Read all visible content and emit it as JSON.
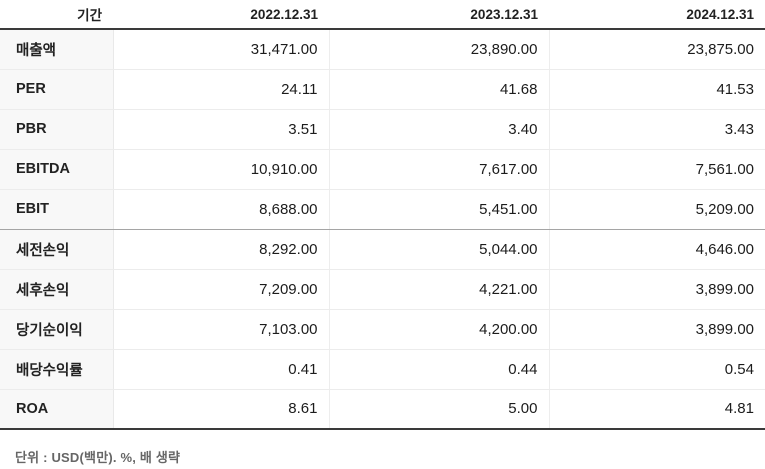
{
  "colors": {
    "heavy_border": "#3a3a3a",
    "light_border": "#ececec",
    "section_border": "#a5a5a5",
    "label_bg": "#f8f8f8",
    "text": "#222222",
    "footnote_text": "#666666"
  },
  "table": {
    "header": {
      "period_label": "기간",
      "columns": [
        "2022.12.31",
        "2023.12.31",
        "2024.12.31"
      ]
    },
    "rows": [
      {
        "label": "매출액",
        "values": [
          "31,471.00",
          "23,890.00",
          "23,875.00"
        ]
      },
      {
        "label": "PER",
        "values": [
          "24.11",
          "41.68",
          "41.53"
        ]
      },
      {
        "label": "PBR",
        "values": [
          "3.51",
          "3.40",
          "3.43"
        ]
      },
      {
        "label": "EBITDA",
        "values": [
          "10,910.00",
          "7,617.00",
          "7,561.00"
        ]
      },
      {
        "label": "EBIT",
        "values": [
          "8,688.00",
          "5,451.00",
          "5,209.00"
        ]
      },
      {
        "label": "세전손익",
        "values": [
          "8,292.00",
          "5,044.00",
          "4,646.00"
        ]
      },
      {
        "label": "세후손익",
        "values": [
          "7,209.00",
          "4,221.00",
          "3,899.00"
        ]
      },
      {
        "label": "당기순이익",
        "values": [
          "7,103.00",
          "4,200.00",
          "3,899.00"
        ]
      },
      {
        "label": "배당수익률",
        "values": [
          "0.41",
          "0.44",
          "0.54"
        ]
      },
      {
        "label": "ROA",
        "values": [
          "8.61",
          "5.00",
          "4.81"
        ]
      }
    ],
    "section_end_row_index": 4,
    "footnote": "단위 : USD(백만). %, 배 생략"
  },
  "chart_data": {
    "type": "table",
    "title": "",
    "columns": [
      "기간",
      "2022.12.31",
      "2023.12.31",
      "2024.12.31"
    ],
    "rows": [
      [
        "매출액",
        31471.0,
        23890.0,
        23875.0
      ],
      [
        "PER",
        24.11,
        41.68,
        41.53
      ],
      [
        "PBR",
        3.51,
        3.4,
        3.43
      ],
      [
        "EBITDA",
        10910.0,
        7617.0,
        7561.0
      ],
      [
        "EBIT",
        8688.0,
        5451.0,
        5209.0
      ],
      [
        "세전손익",
        8292.0,
        5044.0,
        4646.0
      ],
      [
        "세후손익",
        7209.0,
        4221.0,
        3899.0
      ],
      [
        "당기순이익",
        7103.0,
        4200.0,
        3899.0
      ],
      [
        "배당수익률",
        0.41,
        0.44,
        0.54
      ],
      [
        "ROA",
        8.61,
        5.0,
        4.81
      ]
    ],
    "unit_note": "단위 : USD(백만). %, 배 생략"
  }
}
